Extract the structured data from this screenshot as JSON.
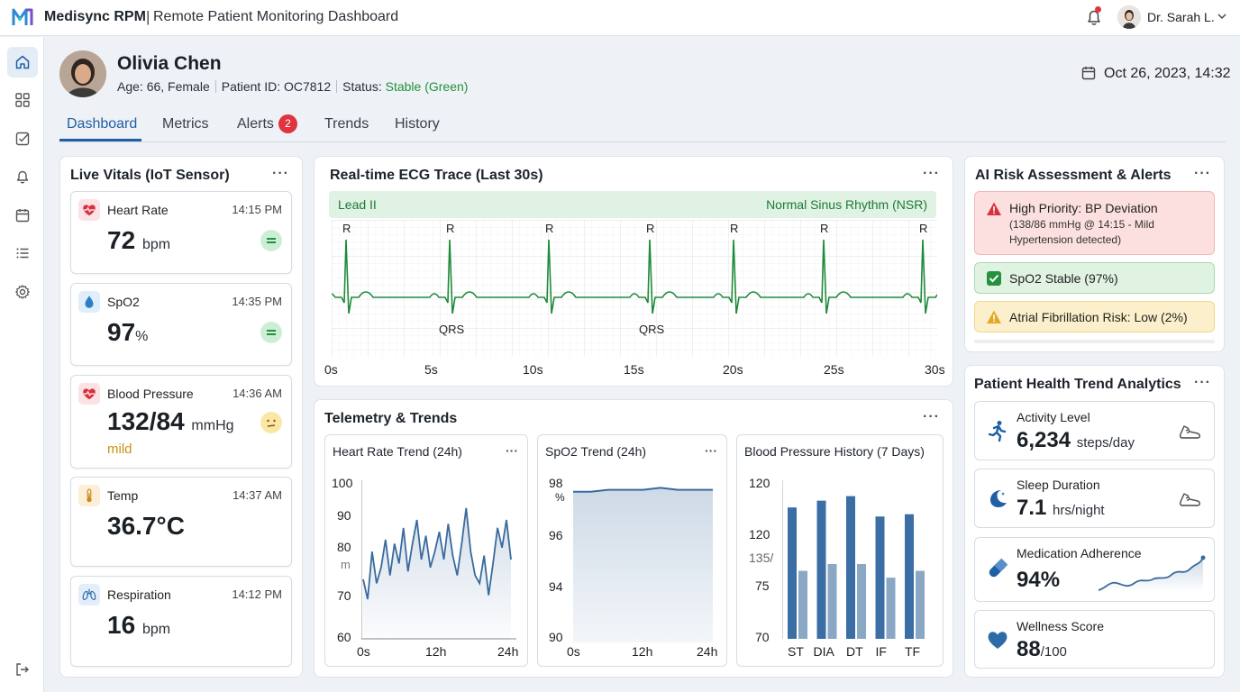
{
  "header": {
    "app_name": "Medisync RPM",
    "separator": "|",
    "app_subtitle": "Remote Patient Monitoring Dashboard",
    "user_name": "Dr. Sarah L."
  },
  "patient": {
    "name": "Olivia Chen",
    "age_sex": "Age: 66, Female",
    "patient_id": "Patient ID: OC7812",
    "status_label": "Status:",
    "status_value": "Stable (Green)",
    "datetime": "Oct 26, 2023, 14:32"
  },
  "tabs": [
    {
      "label": "Dashboard"
    },
    {
      "label": "Metrics"
    },
    {
      "label": "Alerts",
      "badge": "2"
    },
    {
      "label": "Trends"
    },
    {
      "label": "History"
    }
  ],
  "sidebar": {
    "items": [
      {
        "icon": "home-icon"
      },
      {
        "icon": "grid-icon"
      },
      {
        "icon": "checklist-icon"
      },
      {
        "icon": "bell-icon"
      },
      {
        "icon": "calendar-icon"
      },
      {
        "icon": "list-icon"
      },
      {
        "icon": "gear-icon"
      }
    ],
    "bottom_icon": "logout-icon"
  },
  "vitals": {
    "title": "Live Vitals (IoT Sensor)",
    "menu": "···",
    "cards": [
      {
        "label": "Heart Rate",
        "time": "14:15 PM",
        "value": "72",
        "unit": "bpm",
        "icon": "heart-icon",
        "status": "normal"
      },
      {
        "label": "SpO2",
        "time": "14:35 PM",
        "value": "97",
        "unit": "%",
        "icon": "droplet-icon",
        "status": "normal"
      },
      {
        "label": "Blood Pressure",
        "time": "14:36 AM",
        "value": "132/84",
        "unit": "mmHg",
        "note": "mild",
        "icon": "heart-icon",
        "status": "mild"
      },
      {
        "label": "Temp",
        "time": "14:37 AM",
        "value": "36.7°C",
        "unit": "",
        "icon": "thermometer-icon"
      },
      {
        "label": "Respiration",
        "time": "14:12 PM",
        "value": "16",
        "unit": "bpm",
        "icon": "lungs-icon"
      }
    ]
  },
  "ecg": {
    "title": "Real-time ECG Trace (Last 30s)",
    "menu": "···",
    "lead": "Lead II",
    "rhythm": "Normal Sinus Rhythm (NSR)",
    "r_label": "R",
    "qrs_label": "QRS",
    "x_ticks": [
      "0s",
      "5s",
      "10s",
      "15s",
      "20s",
      "25s",
      "30s"
    ],
    "color": "#1f8a3a"
  },
  "telemetry": {
    "title": "Telemetry & Trends",
    "menu": "···",
    "hr_trend": {
      "title": "Heart Rate Trend (24h)",
      "menu": "···",
      "y_ticks": [
        "100",
        "90",
        "80",
        "70",
        "60"
      ],
      "stray_label": "m",
      "x_ticks": [
        "0s",
        "12h",
        "24h"
      ]
    },
    "spo2_trend": {
      "title": "SpO2 Trend (24h)",
      "menu": "···",
      "y_ticks": [
        "98",
        "96",
        "94",
        "90"
      ],
      "unit_label": "%",
      "x_ticks": [
        "0s",
        "12h",
        "24h"
      ]
    },
    "bp_history": {
      "title": "Blood Pressure History (7 Days)",
      "menu": "···",
      "y_ticks": [
        "120",
        "120",
        "75",
        "70"
      ],
      "mid_label": "135/",
      "x_ticks": [
        "ST",
        "DIA",
        "DT",
        "IF",
        "TF"
      ]
    }
  },
  "chart_data": [
    {
      "type": "line",
      "title": "Heart Rate Trend (24h)",
      "ylim": [
        60,
        100
      ],
      "x_ticks": [
        "0s",
        "12h",
        "24h"
      ],
      "series": [
        {
          "values": [
            75,
            70,
            82,
            74,
            78,
            85,
            76,
            84,
            79,
            88,
            77,
            84,
            90,
            80,
            86,
            78,
            82,
            87,
            80,
            89,
            81,
            76,
            84,
            93,
            82,
            76,
            74,
            81,
            71,
            79,
            88,
            83,
            90,
            80
          ]
        }
      ]
    },
    {
      "type": "area",
      "title": "SpO2 Trend (24h)",
      "ylim": [
        90,
        98
      ],
      "x_ticks": [
        "0s",
        "12h",
        "24h"
      ],
      "series": [
        {
          "values": [
            97.6,
            97.6,
            97.7,
            97.7,
            97.7,
            97.8,
            97.7,
            97.7,
            97.7
          ]
        }
      ]
    },
    {
      "type": "bar",
      "title": "Blood Pressure History (7 Days)",
      "categories": [
        "ST",
        "DIA",
        "DT",
        "IF",
        "TF"
      ],
      "series": [
        {
          "values": [
            128,
            131,
            133,
            124,
            125
          ]
        },
        {
          "values": [
            100,
            103,
            103,
            97,
            100
          ]
        }
      ]
    }
  ],
  "risk": {
    "title": "AI Risk Assessment & Alerts",
    "menu": "···",
    "alerts": [
      {
        "title": "High Priority: BP Deviation",
        "detail": "(138/86 mmHg @ 14:15 - Mild Hypertension detected)",
        "level": "high"
      },
      {
        "title": "SpO2 Stable (97%)",
        "level": "ok"
      },
      {
        "title": "Atrial Fibrillation Risk: Low (2%)",
        "level": "warn"
      }
    ]
  },
  "analytics": {
    "title": "Patient Health Trend Analytics",
    "menu": "···",
    "cards": [
      {
        "label": "Activity Level",
        "value": "6,234",
        "unit": "steps/day",
        "icon": "running-icon",
        "right_icon": "shoe-icon"
      },
      {
        "label": "Sleep Duration",
        "value": "7.1",
        "unit": "hrs/night",
        "icon": "moon-icon",
        "right_icon": "shoe-icon"
      },
      {
        "label": "Medication Adherence",
        "value": "94%",
        "unit": "",
        "icon": "pill-icon",
        "right_icon": "sparkline-icon"
      },
      {
        "label": "Wellness Score",
        "value": "88",
        "unit": "/100",
        "icon": "heart-icon"
      }
    ]
  },
  "colors": {
    "accent": "#1f5fa6",
    "ok": "#23913d",
    "alert": "#e0353f",
    "warn": "#e5a823",
    "chart_blue": "#3a6a9e"
  }
}
